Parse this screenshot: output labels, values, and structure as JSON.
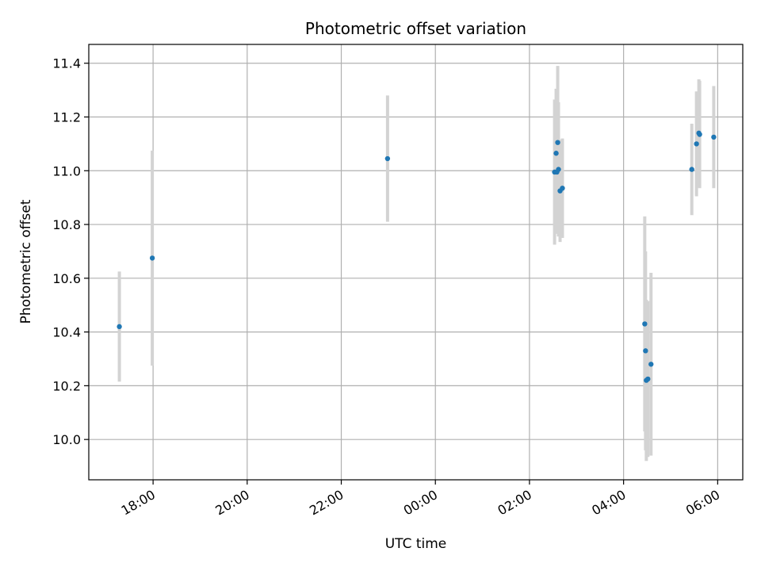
{
  "chart_data": {
    "type": "scatter",
    "title": "Photometric offset variation",
    "xlabel": "UTC time",
    "ylabel": "Photometric offset",
    "x_ticks": [
      "18:00",
      "20:00",
      "22:00",
      "00:00",
      "02:00",
      "04:00",
      "06:00"
    ],
    "y_ticks": [
      "10.0",
      "10.2",
      "10.4",
      "10.6",
      "10.8",
      "11.0",
      "11.2",
      "11.4"
    ],
    "ylim": [
      9.85,
      11.47
    ],
    "grid": true,
    "errorbar_color": "#d3d3d3",
    "marker_color": "#1f77b4",
    "points": [
      {
        "time": "17:17",
        "y": 10.42,
        "err": 0.205
      },
      {
        "time": "17:59",
        "y": 10.675,
        "err": 0.4
      },
      {
        "time": "22:59",
        "y": 11.045,
        "err": 0.235
      },
      {
        "time": "02:32",
        "y": 10.995,
        "err": 0.27
      },
      {
        "time": "02:34",
        "y": 11.065,
        "err": 0.24
      },
      {
        "time": "02:35",
        "y": 10.995,
        "err": 0.23
      },
      {
        "time": "02:36",
        "y": 11.105,
        "err": 0.285
      },
      {
        "time": "02:37",
        "y": 11.005,
        "err": 0.25
      },
      {
        "time": "02:39",
        "y": 10.925,
        "err": 0.19
      },
      {
        "time": "02:42",
        "y": 10.935,
        "err": 0.185
      },
      {
        "time": "04:27",
        "y": 10.43,
        "err": 0.4
      },
      {
        "time": "04:28",
        "y": 10.33,
        "err": 0.37
      },
      {
        "time": "04:29",
        "y": 10.22,
        "err": 0.3
      },
      {
        "time": "04:31",
        "y": 10.225,
        "err": 0.29
      },
      {
        "time": "04:35",
        "y": 10.28,
        "err": 0.34
      },
      {
        "time": "05:27",
        "y": 11.005,
        "err": 0.17
      },
      {
        "time": "05:33",
        "y": 11.1,
        "err": 0.195
      },
      {
        "time": "05:36",
        "y": 11.14,
        "err": 0.2
      },
      {
        "time": "05:37",
        "y": 11.135,
        "err": 0.2
      },
      {
        "time": "05:55",
        "y": 11.125,
        "err": 0.19
      }
    ]
  }
}
